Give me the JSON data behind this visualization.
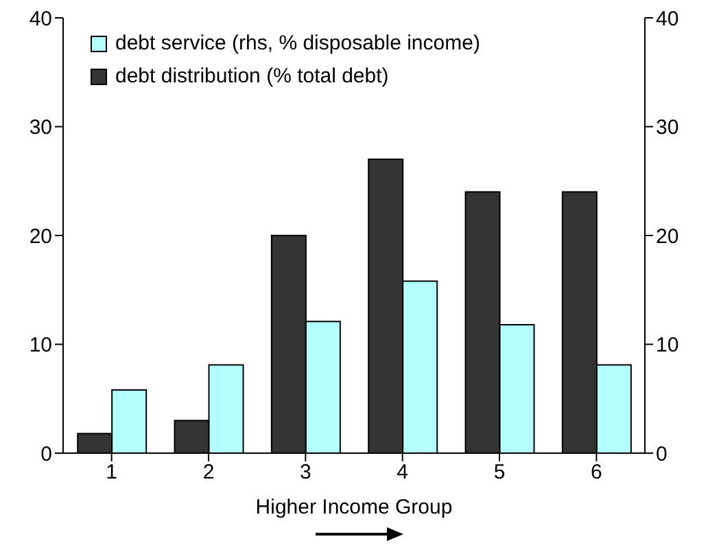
{
  "chart_data": {
    "type": "bar",
    "xlabel": "Higher Income Group",
    "categories": [
      "1",
      "2",
      "3",
      "4",
      "5",
      "6"
    ],
    "series": [
      {
        "name": "debt distribution (% total debt)",
        "color": "#333333",
        "values": [
          1.8,
          3,
          20,
          27,
          24,
          24
        ]
      },
      {
        "name": "debt service (rhs, % disposable income)",
        "color": "#b3ffff",
        "axis": "y2",
        "values": [
          5.8,
          8.1,
          12.1,
          15.8,
          11.8,
          8.1
        ]
      }
    ],
    "ylim": [
      0,
      40
    ],
    "yticks": [
      0,
      10,
      20,
      30,
      40
    ],
    "y2lim": [
      0,
      40
    ],
    "y2ticks": [
      0,
      10,
      20,
      30,
      40
    ],
    "grid": false,
    "legend": "top left"
  }
}
